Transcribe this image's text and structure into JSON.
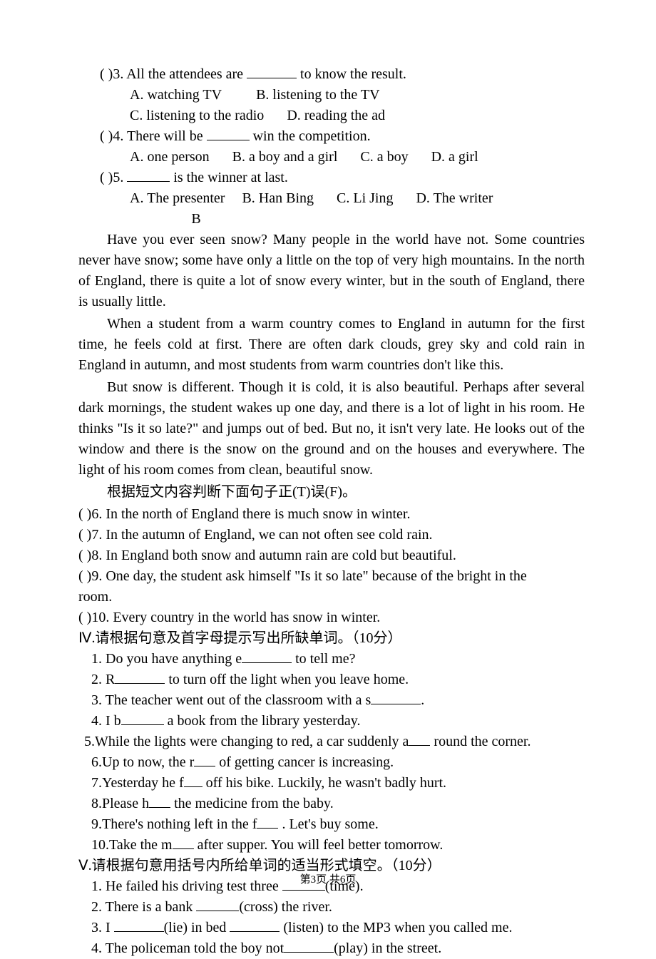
{
  "q3": {
    "stem_a": "(   )3. All the attendees are ",
    "stem_b": " to know the result.",
    "optA": "A. watching TV",
    "optB": "B. listening to the TV",
    "optC": "C. listening to the radio",
    "optD": "D. reading the ad"
  },
  "q4": {
    "stem_a": "(   )4. There will be ",
    "stem_b": " win the competition.",
    "optA": "A. one person",
    "optB": "B. a boy and a girl",
    "optC": "C. a boy",
    "optD": "D. a girl"
  },
  "q5": {
    "stem_a": "(   )5. ",
    "stem_b": " is the winner at last.",
    "optA": "A. The presenter",
    "optB": "B. Han Bing",
    "optC": "C. Li Jing",
    "optD": "D. The writer"
  },
  "passageLabel": "B",
  "p1": "Have you ever seen snow? Many people in the world have not. Some countries never have snow; some have only a little on the top of very high mountains. In the north of England, there is quite a lot of snow every winter, but in the south of England, there is usually little.",
  "p2": "When a student from a warm country comes to England in autumn for the first time, he feels cold at first. There are often dark clouds, grey sky and cold rain in England in autumn, and most students from warm countries don't like this.",
  "p3": "But snow is different. Though it is cold, it is also beautiful. Perhaps after several dark mornings, the student wakes up one day, and there is a lot of light in his room. He thinks \"Is it so late?\" and jumps out of bed. But no, it isn't very late. He looks out of the window and there is the snow on the ground and on the houses and everywhere. The light of his room comes from clean, beautiful snow.",
  "tfInstr": "根据短文内容判断下面句子正(T)误(F)。",
  "tf6": " (   )6. In the north of England there is much snow in winter.",
  "tf7": " (   )7. In the autumn of England, we can not often see cold rain.",
  "tf8": " (   )8. In England both snow and autumn rain are cold but beautiful.",
  "tf9a": " (   )9. One day, the student ask himself \"Is it so late\" because of the bright in the",
  "tf9b": "room.",
  "tf10": " (   )10. Every country in the world has snow in winter.",
  "sec4": "Ⅳ.请根据句意及首字母提示写出所缺单词。（10分）",
  "s4_1a": "1. Do you have anything e",
  "s4_1b": " to tell me?",
  "s4_2a": "2. R",
  "s4_2b": " to turn off the light when you leave home.",
  "s4_3a": "3. The teacher went out of the classroom with a s",
  "s4_3b": ".",
  "s4_4a": "4. I b",
  "s4_4b": " a book from the library yesterday.",
  "s4_5a": "5.While the lights were changing to red, a car suddenly a",
  "s4_5b": " round the corner.",
  "s4_6a": "6.Up to now, the r",
  "s4_6b": " of getting cancer is increasing.",
  "s4_7a": "7.Yesterday he f",
  "s4_7b": " off his bike. Luckily, he wasn't badly hurt.",
  "s4_8a": "8.Please h",
  "s4_8b": " the medicine from the baby.",
  "s4_9a": "9.There's nothing left in the f",
  "s4_9b": " . Let's buy some.",
  "s4_10a": "10.Take the m",
  "s4_10b": " after supper. You will feel better tomorrow.",
  "sec5": "Ⅴ.请根据句意用括号内所给单词的适当形式填空。（10分）",
  "s5_1a": "1. He failed his driving test three ",
  "s5_1b": "(time).",
  "s5_2a": "2. There is a bank ",
  "s5_2b": "(cross) the river.",
  "s5_3a": "3. I ",
  "s5_3b": "(lie) in bed ",
  "s5_3c": " (listen) to the MP3 when you called me.",
  "s5_4a": "4. The policeman told the boy not",
  "s5_4b": "(play) in the street.",
  "footer": "第3页  共6页"
}
